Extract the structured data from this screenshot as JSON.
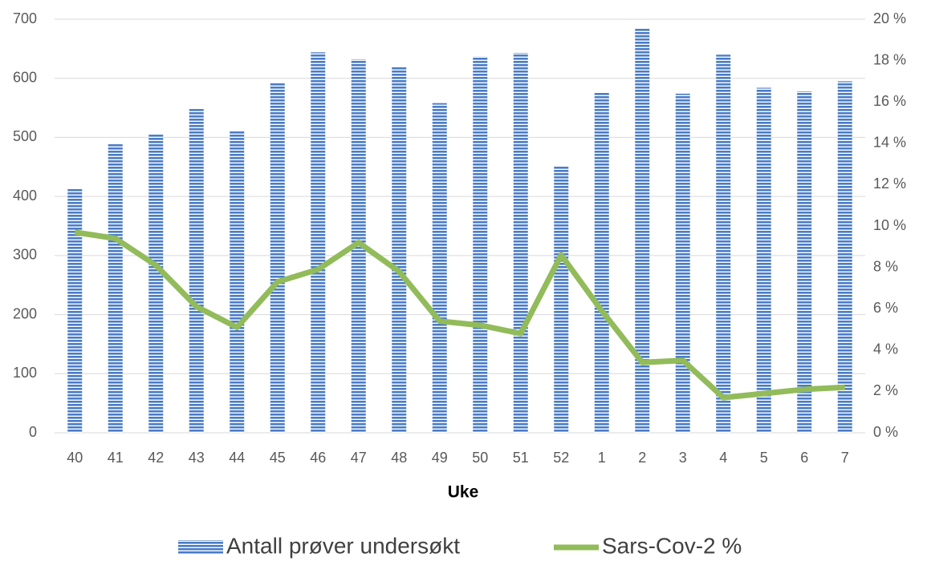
{
  "chart_data": {
    "type": "bar-line",
    "x_label": "Uke",
    "categories": [
      "40",
      "41",
      "42",
      "43",
      "44",
      "45",
      "46",
      "47",
      "48",
      "49",
      "50",
      "51",
      "52",
      "1",
      "2",
      "3",
      "4",
      "5",
      "6",
      "7"
    ],
    "series": [
      {
        "name": "Antall prøver undersøkt",
        "type": "bar",
        "color": "#4a7cc7",
        "values": [
          413,
          490,
          506,
          548,
          512,
          592,
          644,
          632,
          619,
          558,
          637,
          643,
          451,
          576,
          684,
          574,
          640,
          584,
          578,
          595
        ]
      },
      {
        "name": "Sars-Cov-2 %",
        "type": "line",
        "axis": "y2",
        "color": "#92bb5a",
        "values": [
          9.7,
          9.4,
          8.1,
          6.1,
          5.1,
          7.3,
          7.9,
          9.2,
          7.8,
          5.4,
          5.2,
          4.8,
          8.6,
          5.9,
          3.4,
          3.5,
          1.7,
          1.9,
          2.1,
          2.2
        ]
      }
    ],
    "ylim": [
      0,
      700
    ],
    "yticks": [
      0,
      100,
      200,
      300,
      400,
      500,
      600,
      700
    ],
    "y2lim": [
      0,
      20
    ],
    "y2ticks": [
      {
        "value": 0,
        "label": "0 %"
      },
      {
        "value": 2,
        "label": "2 %"
      },
      {
        "value": 4,
        "label": "4 %"
      },
      {
        "value": 6,
        "label": "6 %"
      },
      {
        "value": 8,
        "label": "8 %"
      },
      {
        "value": 10,
        "label": "10 %"
      },
      {
        "value": 12,
        "label": "12 %"
      },
      {
        "value": 14,
        "label": "14 %"
      },
      {
        "value": 16,
        "label": "16 %"
      },
      {
        "value": 18,
        "label": "18 %"
      },
      {
        "value": 20,
        "label": "20 %"
      }
    ],
    "grid": true,
    "legend": "bottom"
  }
}
